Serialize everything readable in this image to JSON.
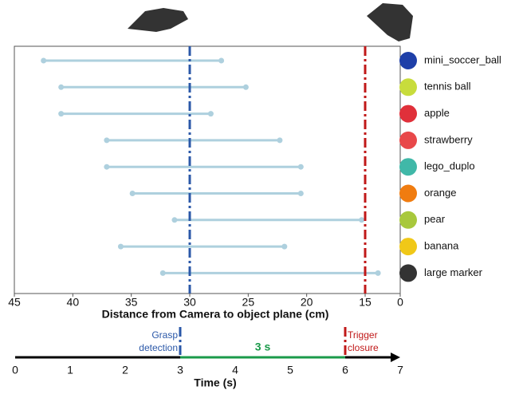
{
  "chart_data": [
    {
      "type": "range",
      "xlabel": "Distance from Camera to object plane (cm)",
      "categories": [
        "mini_soccer_ball",
        "tennis ball",
        "apple",
        "strawberry",
        "lego_duplo",
        "orange",
        "pear",
        "banana",
        "large marker"
      ],
      "start": [
        42.5,
        41.0,
        41.0,
        37.1,
        37.1,
        34.9,
        31.3,
        35.9,
        32.3
      ],
      "end": [
        27.3,
        25.2,
        28.2,
        22.3,
        20.5,
        20.5,
        15.3,
        21.9,
        13.9
      ],
      "color": "#aed0de",
      "icon_colors": [
        "#1e3fa8",
        "#c8dc3c",
        "#e0303a",
        "#e8484a",
        "#40b8a8",
        "#f07c10",
        "#a8c83c",
        "#f0c818",
        "#333333"
      ],
      "xlim": [
        45,
        12
      ],
      "xticks": [
        45,
        40,
        35,
        30,
        25,
        20,
        15,
        {
          "value": 12,
          "label": "0"
        }
      ],
      "vlines": [
        {
          "x": 30,
          "color": "#2b58a8"
        },
        {
          "x": 15,
          "color": "#c01818"
        }
      ]
    },
    {
      "type": "timeline",
      "xlabel": "Time (s)",
      "xlim": [
        0,
        7
      ],
      "xticks": [
        0,
        1,
        2,
        3,
        4,
        5,
        6,
        7
      ],
      "events": [
        {
          "x": 3,
          "label": [
            "Grasp",
            "detection"
          ],
          "color": "#2b58a8"
        },
        {
          "x": 6,
          "label": [
            "Trigger",
            "closure"
          ],
          "color": "#c01818"
        }
      ],
      "span": {
        "start": 3,
        "end": 6,
        "label": "3 s",
        "color": "#1a9a4a"
      }
    }
  ]
}
